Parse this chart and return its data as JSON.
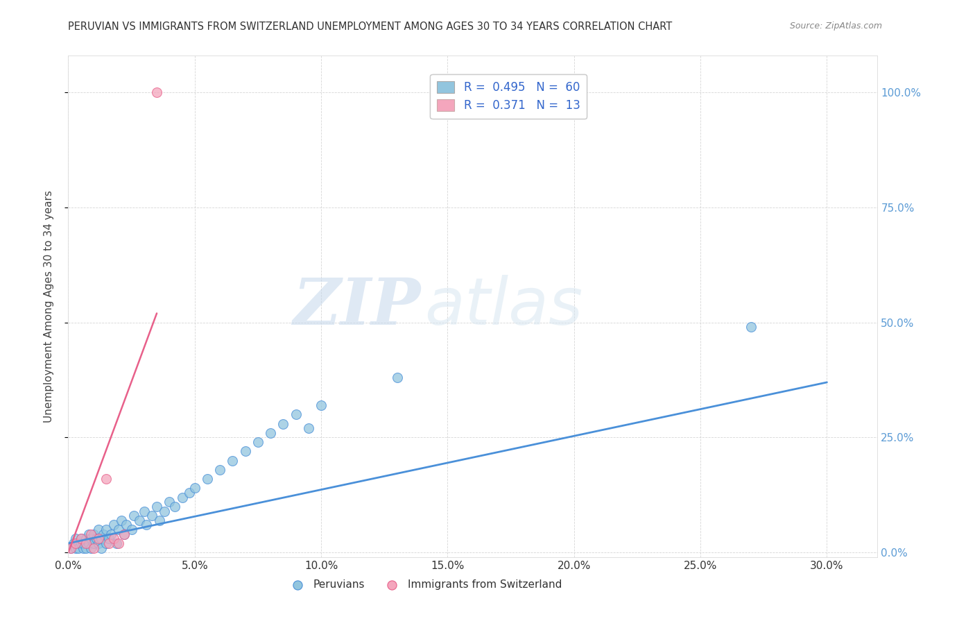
{
  "title": "PERUVIAN VS IMMIGRANTS FROM SWITZERLAND UNEMPLOYMENT AMONG AGES 30 TO 34 YEARS CORRELATION CHART",
  "source": "Source: ZipAtlas.com",
  "ylabel_label": "Unemployment Among Ages 30 to 34 years",
  "xlim": [
    0.0,
    0.32
  ],
  "ylim": [
    -0.01,
    1.08
  ],
  "watermark_zip": "ZIP",
  "watermark_atlas": "atlas",
  "legend_r1": "0.495",
  "legend_n1": "60",
  "legend_r2": "0.371",
  "legend_n2": "13",
  "blue_color": "#92c5de",
  "pink_color": "#f4a6bd",
  "blue_line_color": "#4a90d9",
  "pink_line_color": "#e8608a",
  "blue_scatter_x": [
    0.001,
    0.002,
    0.003,
    0.003,
    0.004,
    0.004,
    0.005,
    0.005,
    0.006,
    0.006,
    0.007,
    0.007,
    0.008,
    0.008,
    0.009,
    0.009,
    0.01,
    0.01,
    0.011,
    0.012,
    0.012,
    0.013,
    0.013,
    0.014,
    0.015,
    0.015,
    0.016,
    0.017,
    0.018,
    0.019,
    0.02,
    0.021,
    0.022,
    0.023,
    0.025,
    0.026,
    0.028,
    0.03,
    0.031,
    0.033,
    0.035,
    0.036,
    0.038,
    0.04,
    0.042,
    0.045,
    0.048,
    0.05,
    0.055,
    0.06,
    0.065,
    0.07,
    0.075,
    0.08,
    0.085,
    0.09,
    0.095,
    0.1,
    0.13,
    0.27
  ],
  "blue_scatter_y": [
    0.01,
    0.02,
    0.01,
    0.03,
    0.02,
    0.01,
    0.02,
    0.03,
    0.01,
    0.02,
    0.03,
    0.01,
    0.02,
    0.04,
    0.01,
    0.03,
    0.02,
    0.04,
    0.03,
    0.02,
    0.05,
    0.03,
    0.01,
    0.04,
    0.05,
    0.02,
    0.03,
    0.04,
    0.06,
    0.02,
    0.05,
    0.07,
    0.04,
    0.06,
    0.05,
    0.08,
    0.07,
    0.09,
    0.06,
    0.08,
    0.1,
    0.07,
    0.09,
    0.11,
    0.1,
    0.12,
    0.13,
    0.14,
    0.16,
    0.18,
    0.2,
    0.22,
    0.24,
    0.26,
    0.28,
    0.3,
    0.27,
    0.32,
    0.38,
    0.49
  ],
  "pink_scatter_x": [
    0.001,
    0.003,
    0.005,
    0.007,
    0.009,
    0.01,
    0.012,
    0.015,
    0.016,
    0.018,
    0.02,
    0.022,
    0.035
  ],
  "pink_scatter_y": [
    0.01,
    0.02,
    0.03,
    0.02,
    0.04,
    0.01,
    0.03,
    0.16,
    0.02,
    0.03,
    0.02,
    0.04,
    1.0
  ],
  "blue_trend_x": [
    0.0,
    0.3
  ],
  "blue_trend_y": [
    0.02,
    0.37
  ],
  "pink_trend_x": [
    0.0,
    0.035
  ],
  "pink_trend_y": [
    0.0,
    0.52
  ],
  "xticks": [
    0.0,
    0.05,
    0.1,
    0.15,
    0.2,
    0.25,
    0.3
  ],
  "xtick_labels": [
    "0.0%",
    "5.0%",
    "10.0%",
    "15.0%",
    "20.0%",
    "25.0%",
    "30.0%"
  ],
  "yticks_right": [
    0.0,
    0.25,
    0.5,
    0.75,
    1.0
  ],
  "ytick_labels_right": [
    "0.0%",
    "25.0%",
    "50.0%",
    "75.0%",
    "100.0%"
  ]
}
